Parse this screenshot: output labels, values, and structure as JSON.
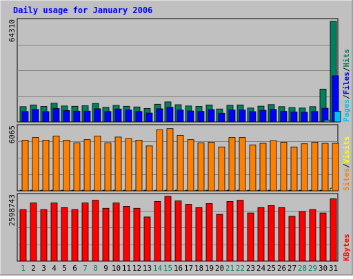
{
  "chart_data": {
    "type": "bar",
    "title": "Daily usage for January 2006",
    "categories": [
      "1",
      "2",
      "3",
      "4",
      "5",
      "6",
      "7",
      "8",
      "9",
      "10",
      "11",
      "12",
      "13",
      "14",
      "15",
      "16",
      "17",
      "18",
      "19",
      "20",
      "21",
      "22",
      "23",
      "24",
      "25",
      "26",
      "27",
      "28",
      "29",
      "30",
      "31"
    ],
    "weekend_days": [
      "1",
      "7",
      "8",
      "14",
      "15",
      "21",
      "22",
      "28",
      "29"
    ],
    "panels": [
      {
        "name": "hits",
        "ymax_label": "64310",
        "ymax": 64310,
        "grid": true,
        "legend": [
          {
            "label": "Pages",
            "color": "#00c0ff"
          },
          {
            "label": "/",
            "color": "#000000"
          },
          {
            "label": "Files",
            "color": "#0000ff"
          },
          {
            "label": "/",
            "color": "#000000"
          },
          {
            "label": "Hits",
            "color": "#00805c"
          }
        ],
        "series": [
          {
            "name": "Hits",
            "color": "#00805c",
            "values": [
              9800,
              10900,
              9900,
              12000,
              10200,
              10000,
              10400,
              11800,
              9400,
              10600,
              10000,
              9600,
              8600,
              11300,
              12800,
              11000,
              10200,
              9900,
              10900,
              8300,
              10700,
              10900,
              8900,
              10100,
              11100,
              9800,
              9200,
              8900,
              9800,
              21000,
              64310
            ]
          },
          {
            "name": "Files",
            "color": "#0000ff",
            "values": [
              6700,
              8000,
              6600,
              8600,
              7300,
              6900,
              6900,
              8400,
              6700,
              8300,
              7600,
              6700,
              5700,
              8400,
              9400,
              7600,
              7000,
              6800,
              7900,
              5600,
              7600,
              7600,
              6600,
              7400,
              8000,
              6800,
              6400,
              6200,
              6700,
              8700,
              29500
            ]
          },
          {
            "name": "Pages",
            "color": "#00c0ff",
            "values": [
              0,
              0,
              0,
              0,
              0,
              0,
              0,
              0,
              0,
              0,
              0,
              0,
              0,
              0,
              0,
              0,
              0,
              0,
              0,
              0,
              0,
              0,
              0,
              0,
              0,
              0,
              0,
              0,
              0,
              1200,
              6800
            ]
          }
        ]
      },
      {
        "name": "visits",
        "ymax_label": "6065",
        "ymax": 6065,
        "grid": true,
        "legend": [
          {
            "label": "Sites",
            "color": "#ff8000"
          },
          {
            "label": "/",
            "color": "#000000"
          },
          {
            "label": "Visits",
            "color": "#ffff00"
          }
        ],
        "series": [
          {
            "name": "Visits",
            "color": "#ffff00",
            "values": [
              60,
              60,
              60,
              60,
              60,
              60,
              60,
              60,
              60,
              60,
              60,
              60,
              60,
              60,
              60,
              60,
              60,
              60,
              60,
              60,
              60,
              60,
              60,
              60,
              60,
              60,
              60,
              60,
              60,
              60,
              250
            ]
          },
          {
            "name": "Sites",
            "color": "#ff8000",
            "values": [
              4850,
              5100,
              4850,
              5250,
              4850,
              4600,
              4900,
              5250,
              4600,
              5150,
              5000,
              4850,
              4300,
              5850,
              5950,
              5300,
              4900,
              4600,
              4650,
              4200,
              5100,
              5100,
              4400,
              4550,
              4800,
              4650,
              4200,
              4500,
              4650,
              4550,
              4550
            ]
          }
        ]
      },
      {
        "name": "kbytes",
        "ymax_label": "2598743",
        "ymax": 2598743,
        "grid": true,
        "legend": [
          {
            "label": "KBytes",
            "color": "#ff0000"
          }
        ],
        "series": [
          {
            "name": "KBytes",
            "color": "#ff0000",
            "values": [
              2067000,
              2337000,
              2067000,
              2337000,
              2148000,
              2067000,
              2337000,
              2444000,
              2121000,
              2337000,
              2202000,
              2121000,
              1771000,
              2391000,
              2598743,
              2417000,
              2282000,
              2148000,
              2309000,
              1877000,
              2391000,
              2444000,
              1932000,
              2148000,
              2228000,
              2148000,
              1798000,
              1987000,
              2067000,
              1932000,
              2498000
            ]
          }
        ]
      }
    ]
  },
  "style": {
    "outer_bg": "#c0c0c0",
    "plot_bg": "#c0c0c0",
    "gridline": "#808080",
    "title_color": "#0000ff",
    "weekday_label_color": "#000000",
    "weekend_label_color": "#00805c"
  }
}
